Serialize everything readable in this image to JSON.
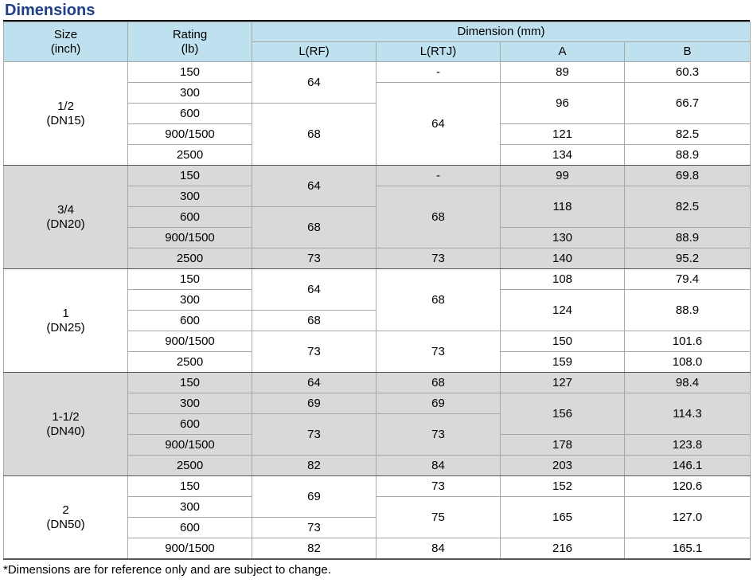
{
  "title": "Dimensions",
  "header": {
    "size": "Size\n(inch)",
    "rating": "Rating\n(lb)",
    "dimension": "Dimension (mm)",
    "l_rf": "L(RF)",
    "l_rtj": "L(RTJ)",
    "a": "A",
    "b": "B"
  },
  "groups": [
    {
      "size": "1/2\n(DN15)",
      "ratings": [
        "150",
        "300",
        "600",
        "900/1500",
        "2500"
      ],
      "l_rf": [
        "64",
        "68"
      ],
      "l_rtj": [
        "-",
        "64"
      ],
      "a": [
        "89",
        "96",
        "121",
        "134"
      ],
      "b": [
        "60.3",
        "66.7",
        "82.5",
        "88.9"
      ]
    },
    {
      "size": "3/4\n(DN20)",
      "ratings": [
        "150",
        "300",
        "600",
        "900/1500",
        "2500"
      ],
      "l_rf": [
        "64",
        "68",
        "73"
      ],
      "l_rtj": [
        "-",
        "68",
        "73"
      ],
      "a": [
        "99",
        "118",
        "130",
        "140"
      ],
      "b": [
        "69.8",
        "82.5",
        "88.9",
        "95.2"
      ]
    },
    {
      "size": "1\n(DN25)",
      "ratings": [
        "150",
        "300",
        "600",
        "900/1500",
        "2500"
      ],
      "l_rf": [
        "64",
        "68",
        "73"
      ],
      "l_rtj": [
        "68",
        "73"
      ],
      "a": [
        "108",
        "124",
        "150",
        "159"
      ],
      "b": [
        "79.4",
        "88.9",
        "101.6",
        "108.0"
      ]
    },
    {
      "size": "1-1/2\n(DN40)",
      "ratings": [
        "150",
        "300",
        "600",
        "900/1500",
        "2500"
      ],
      "l_rf": [
        "64",
        "69",
        "73",
        "82"
      ],
      "l_rtj": [
        "68",
        "69",
        "73",
        "84"
      ],
      "a": [
        "127",
        "156",
        "178",
        "203"
      ],
      "b": [
        "98.4",
        "114.3",
        "123.8",
        "146.1"
      ]
    },
    {
      "size": "2\n(DN50)",
      "ratings": [
        "150",
        "300",
        "600",
        "900/1500"
      ],
      "l_rf": [
        "69",
        "73",
        "82"
      ],
      "l_rtj": [
        "73",
        "75",
        "84"
      ],
      "a": [
        "152",
        "165",
        "216"
      ],
      "b": [
        "120.6",
        "127.0",
        "165.1"
      ]
    }
  ],
  "footnote": "*Dimensions are for reference only and are subject to change."
}
